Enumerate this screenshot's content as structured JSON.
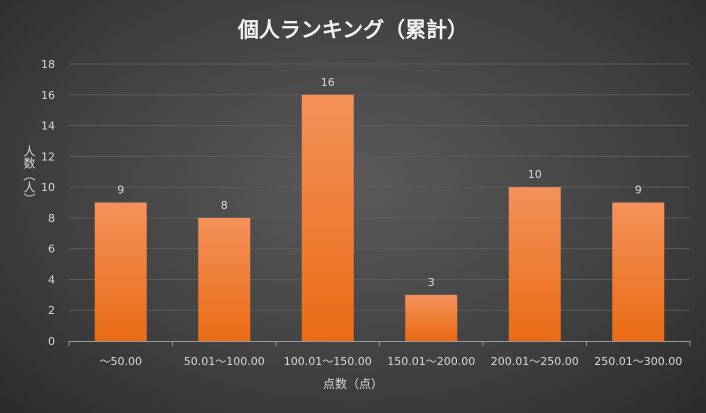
{
  "chart_data": {
    "type": "bar",
    "title": "個人ランキング（累計）",
    "xlabel": "点数（点）",
    "ylabel": "人数（人）",
    "categories": [
      "～50.00",
      "50.01～100.00",
      "100.01～150.00",
      "150.01～200.00",
      "200.01～250.00",
      "250.01～300.00"
    ],
    "values": [
      9,
      8,
      16,
      3,
      10,
      9
    ],
    "ylim": [
      0,
      18
    ],
    "yticks": [
      0,
      2,
      4,
      6,
      8,
      10,
      12,
      14,
      16,
      18
    ],
    "grid": true,
    "legend": "none",
    "bar_color_top": "#f4915a",
    "bar_color_bottom": "#ea6b14"
  }
}
